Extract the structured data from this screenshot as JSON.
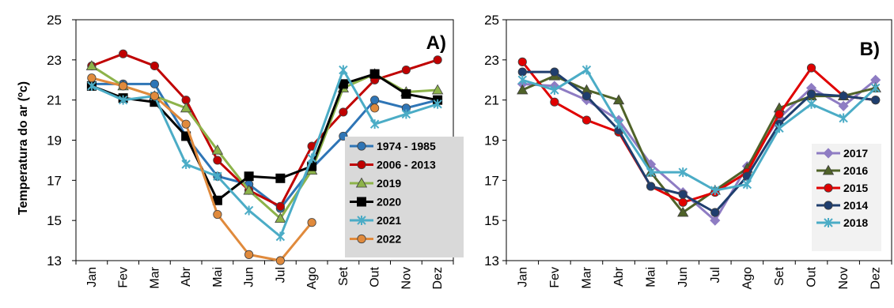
{
  "chart_data": [
    {
      "type": "line",
      "panel_label": "A)",
      "xlabel": "",
      "ylabel": "Temperatura do ar (ºc)",
      "ylim": [
        13,
        25
      ],
      "yticks": [
        13,
        15,
        17,
        19,
        21,
        23,
        25
      ],
      "categories": [
        "Jan",
        "Fev",
        "Mar",
        "Abr",
        "Mai",
        "Jun",
        "Jul",
        "Ago",
        "Set",
        "Out",
        "Nov",
        "Dez"
      ],
      "grid": false,
      "legend_position": "bottom-right",
      "series": [
        {
          "name": "1974 - 1985",
          "color": "#2E75B6",
          "marker": "circle",
          "values": [
            21.8,
            21.8,
            21.8,
            19.2,
            17.2,
            16.8,
            15.6,
            17.6,
            19.2,
            21.0,
            20.6,
            21.0
          ]
        },
        {
          "name": "2006 - 2013",
          "color": "#C00000",
          "marker": "circle",
          "values": [
            22.7,
            23.3,
            22.7,
            21.0,
            18.0,
            16.5,
            15.7,
            18.7,
            20.4,
            22.0,
            22.5,
            23.0
          ]
        },
        {
          "name": "2019",
          "color": "#8DB34A",
          "marker": "triangle",
          "values": [
            22.7,
            21.7,
            21.2,
            20.6,
            18.5,
            16.5,
            15.1,
            17.5,
            21.6,
            22.3,
            21.4,
            21.5
          ]
        },
        {
          "name": "2020",
          "color": "#000000",
          "marker": "square",
          "values": [
            21.7,
            21.1,
            20.9,
            19.2,
            16.0,
            17.2,
            17.1,
            17.7,
            21.8,
            22.3,
            21.3,
            21.0
          ]
        },
        {
          "name": "2021",
          "color": "#4BACC6",
          "marker": "star",
          "values": [
            21.7,
            21.0,
            21.2,
            17.8,
            17.2,
            15.5,
            14.2,
            18.1,
            22.5,
            19.8,
            20.3,
            20.8
          ]
        },
        {
          "name": "2022",
          "color": "#E08A3C",
          "marker": "circle",
          "values": [
            22.1,
            21.7,
            21.2,
            19.8,
            15.3,
            13.3,
            13.0,
            14.9,
            null,
            20.6,
            null,
            null
          ]
        }
      ]
    },
    {
      "type": "line",
      "panel_label": "B)",
      "xlabel": "",
      "ylabel": "",
      "ylim": [
        13,
        25
      ],
      "yticks": [
        13,
        15,
        17,
        19,
        21,
        23,
        25
      ],
      "categories": [
        "Jan",
        "Fev",
        "Mar",
        "Abr",
        "Mai",
        "Jun",
        "Jul",
        "Ago",
        "Set",
        "Out",
        "Nov",
        "Dez"
      ],
      "grid": false,
      "legend_position": "bottom-right",
      "series": [
        {
          "name": "2017",
          "color": "#8E7CC3",
          "marker": "diamond",
          "values": [
            21.8,
            21.7,
            21.0,
            20.0,
            17.8,
            16.4,
            15.0,
            17.7,
            20.1,
            21.6,
            20.7,
            22.0
          ]
        },
        {
          "name": "2016",
          "color": "#4F6228",
          "marker": "triangle",
          "values": [
            21.5,
            22.2,
            21.5,
            21.0,
            17.4,
            15.4,
            16.5,
            17.6,
            20.6,
            21.2,
            21.2,
            21.6
          ]
        },
        {
          "name": "2015",
          "color": "#E00000",
          "marker": "circle",
          "values": [
            22.9,
            20.9,
            20.0,
            19.4,
            16.7,
            15.9,
            16.4,
            17.4,
            20.3,
            22.6,
            21.2,
            21.0
          ]
        },
        {
          "name": "2014",
          "color": "#1F3E6E",
          "marker": "circle",
          "values": [
            22.4,
            22.4,
            21.2,
            19.5,
            16.7,
            16.3,
            15.4,
            17.2,
            19.8,
            21.3,
            21.2,
            21.0
          ]
        },
        {
          "name": "2018",
          "color": "#4BACC6",
          "marker": "star",
          "values": [
            22.0,
            21.5,
            22.5,
            19.8,
            17.4,
            17.4,
            16.5,
            16.8,
            19.6,
            20.8,
            20.1,
            21.6
          ]
        }
      ]
    }
  ]
}
